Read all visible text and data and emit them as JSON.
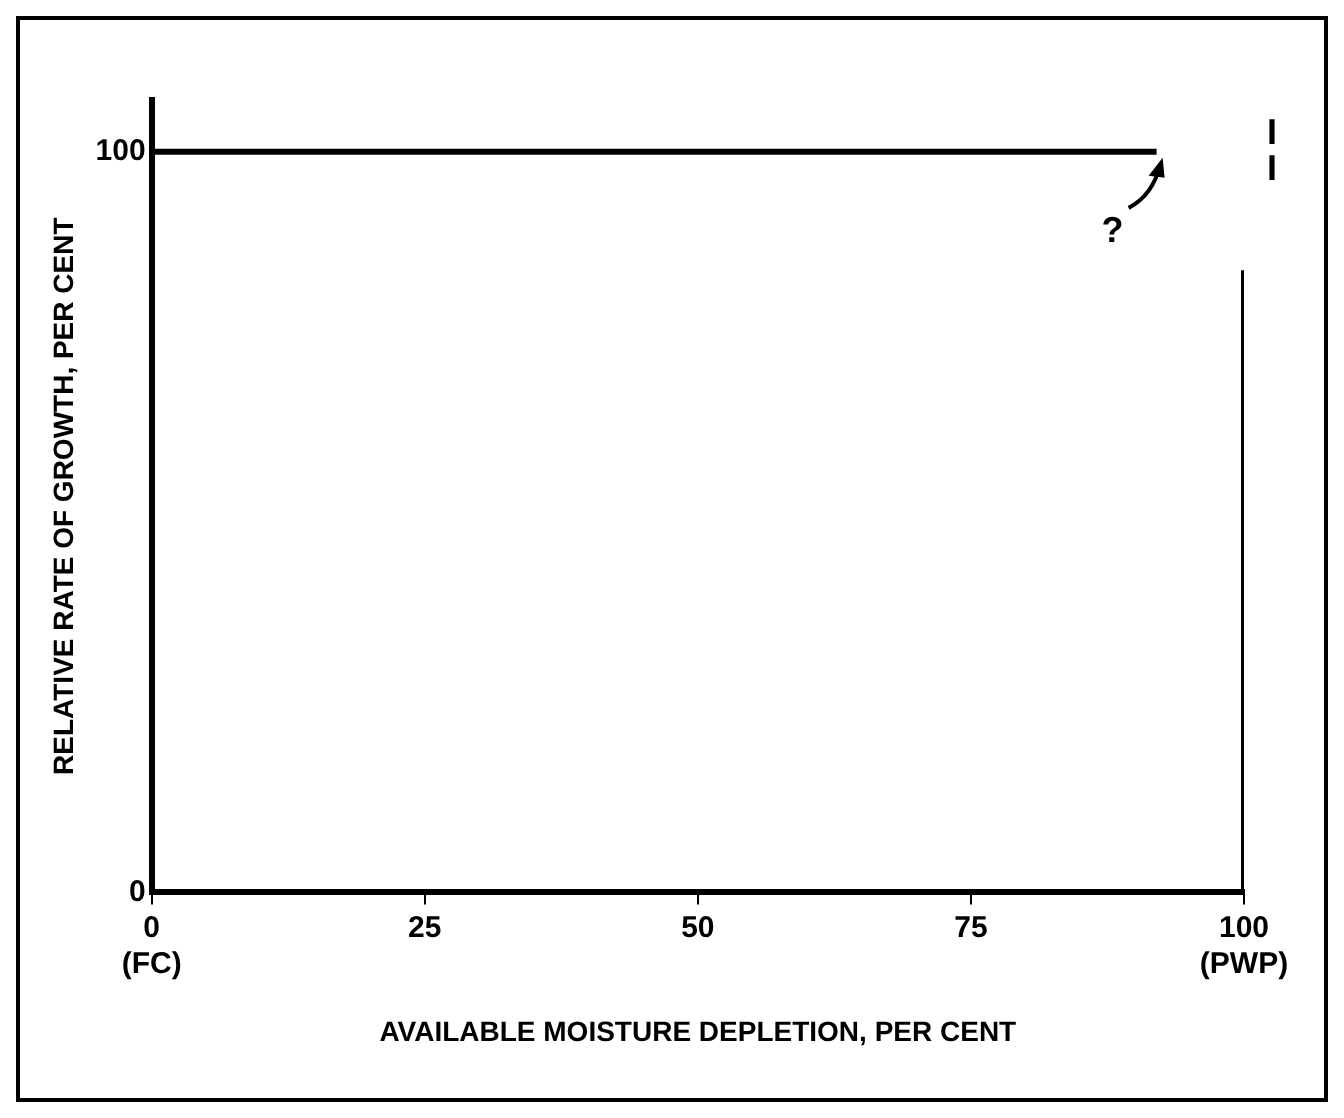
{
  "chart_data": {
    "type": "line",
    "xlabel": "AVAILABLE MOISTURE DEPLETION, PER CENT",
    "ylabel": "RELATIVE RATE OF GROWTH, PER CENT",
    "series": [
      {
        "color": "#000000",
        "x": [
          0,
          92
        ],
        "values": [
          100,
          100
        ]
      },
      {
        "color": "#000000",
        "x": [
          100,
          100
        ],
        "values": [
          0,
          84
        ]
      }
    ],
    "xlim": [
      0,
      100
    ],
    "xticks": [
      {
        "value": 0,
        "label": "0\n(FC)"
      },
      25,
      50,
      75,
      {
        "value": 100,
        "label": "100\n(PWP)"
      }
    ],
    "ylim": [
      0,
      107
    ],
    "yticks": [
      0,
      100
    ],
    "annotations": [
      {
        "text": "?",
        "x": 92,
        "y": 100
      },
      "I\nI"
    ],
    "grid": false,
    "legend": false,
    "marker": "none",
    "line_style": "solid"
  }
}
